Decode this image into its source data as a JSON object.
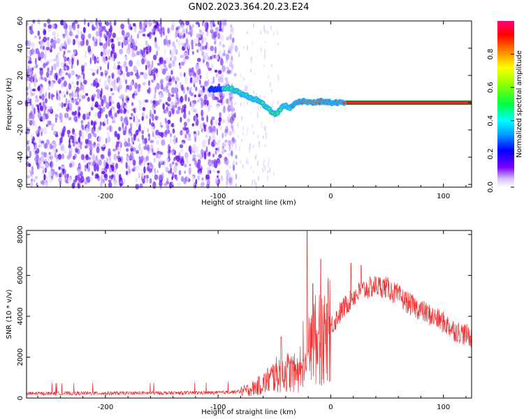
{
  "title": "GN02.2023.364.20.23.E24",
  "chart_data": [
    {
      "type": "heatmap",
      "xlabel": "Height of straight line (km)",
      "ylabel": "Frequency (Hz)",
      "xlim": [
        -270,
        125
      ],
      "ylim": [
        -62,
        60
      ],
      "x_ticks": [
        -200,
        -100,
        0,
        100
      ],
      "y_ticks": [
        60,
        40,
        20,
        0,
        -20,
        -40,
        -60
      ],
      "noise_region_x": [
        -270,
        -90
      ],
      "signal_track": [
        {
          "x": -107,
          "y": 10
        },
        {
          "x": -100,
          "y": 10
        },
        {
          "x": -92,
          "y": 11
        },
        {
          "x": -85,
          "y": 9
        },
        {
          "x": -78,
          "y": 6
        },
        {
          "x": -72,
          "y": 4
        },
        {
          "x": -66,
          "y": 2
        },
        {
          "x": -60,
          "y": -1
        },
        {
          "x": -56,
          "y": -4
        },
        {
          "x": -52,
          "y": -7
        },
        {
          "x": -49,
          "y": -9
        },
        {
          "x": -46,
          "y": -6
        },
        {
          "x": -43,
          "y": -3
        },
        {
          "x": -40,
          "y": -2
        },
        {
          "x": -36,
          "y": -4
        },
        {
          "x": -32,
          "y": -1
        },
        {
          "x": -28,
          "y": 1
        },
        {
          "x": -22,
          "y": 1
        },
        {
          "x": -15,
          "y": 0
        },
        {
          "x": -8,
          "y": 1
        },
        {
          "x": 0,
          "y": 0
        },
        {
          "x": 10,
          "y": 0
        },
        {
          "x": 125,
          "y": 0
        }
      ],
      "colorbar": {
        "label": "Normalized spectral amplitude",
        "ticks": [
          "0.0",
          "0.2",
          "0.4",
          "0.6",
          "0.8"
        ],
        "range": [
          0,
          1
        ]
      }
    },
    {
      "type": "line",
      "xlabel": "Height of straight line (km)",
      "ylabel": "SNR (10 * v/v)",
      "xlim": [
        -270,
        125
      ],
      "ylim": [
        0,
        8200
      ],
      "x_ticks": [
        -200,
        -100,
        0,
        100
      ],
      "y_ticks": [
        0,
        2000,
        4000,
        6000,
        8000
      ],
      "series_color": "#ee3333",
      "envelope": [
        {
          "x": -270,
          "y": 220
        },
        {
          "x": -100,
          "y": 260
        },
        {
          "x": -80,
          "y": 320
        },
        {
          "x": -70,
          "y": 450
        },
        {
          "x": -60,
          "y": 700
        },
        {
          "x": -50,
          "y": 1100
        },
        {
          "x": -40,
          "y": 1300
        },
        {
          "x": -30,
          "y": 1200
        },
        {
          "x": -25,
          "y": 900
        },
        {
          "x": -22,
          "y": 1500
        },
        {
          "x": -18,
          "y": 2800
        },
        {
          "x": -12,
          "y": 2900
        },
        {
          "x": -5,
          "y": 2800
        },
        {
          "x": 0,
          "y": 3500
        },
        {
          "x": 10,
          "y": 4300
        },
        {
          "x": 20,
          "y": 5000
        },
        {
          "x": 30,
          "y": 5300
        },
        {
          "x": 40,
          "y": 5500
        },
        {
          "x": 50,
          "y": 5400
        },
        {
          "x": 60,
          "y": 5000
        },
        {
          "x": 70,
          "y": 4600
        },
        {
          "x": 80,
          "y": 4300
        },
        {
          "x": 90,
          "y": 4000
        },
        {
          "x": 100,
          "y": 3700
        },
        {
          "x": 110,
          "y": 3300
        },
        {
          "x": 125,
          "y": 3000
        }
      ],
      "peaks": [
        {
          "x": -21,
          "y": 8200
        },
        {
          "x": -9,
          "y": 6800
        },
        {
          "x": -16,
          "y": 5600
        },
        {
          "x": -44,
          "y": 3000
        },
        {
          "x": 18,
          "y": 6600
        },
        {
          "x": 27,
          "y": 6500
        }
      ]
    }
  ]
}
